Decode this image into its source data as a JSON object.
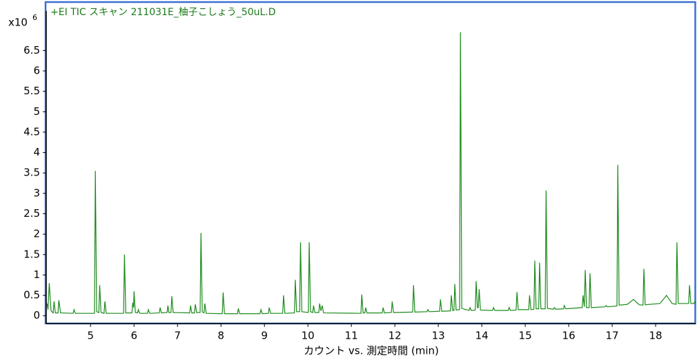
{
  "chart_data": {
    "type": "line",
    "title": "+EI TIC スキャン 211031E_柚子こしょう_50uL.D",
    "y_multiplier": {
      "base": "x10",
      "exponent": "6"
    },
    "xlabel": "カウント vs. 測定時間 (min)",
    "frame_color": "#3a6fd0",
    "xlim": [
      3.98,
      18.92
    ],
    "ylim": [
      -0.19,
      7.67
    ],
    "xticks": [
      5,
      6,
      7,
      8,
      9,
      10,
      11,
      12,
      13,
      14,
      15,
      16,
      17,
      18
    ],
    "yticks": [
      0,
      0.5,
      1,
      1.5,
      2,
      2.5,
      3,
      3.5,
      4,
      4.5,
      5,
      5.5,
      6,
      6.5
    ],
    "x": [
      4.0,
      4.02,
      4.05,
      4.09,
      4.14,
      4.16,
      4.19,
      4.25,
      4.27,
      4.31,
      4.6,
      4.62,
      4.65,
      5.09,
      5.11,
      5.14,
      5.19,
      5.21,
      5.24,
      5.31,
      5.33,
      5.36,
      5.76,
      5.78,
      5.81,
      5.95,
      5.97,
      5.99,
      6.0,
      6.03,
      6.08,
      6.1,
      6.13,
      6.31,
      6.33,
      6.36,
      6.58,
      6.6,
      6.63,
      6.76,
      6.78,
      6.8,
      6.85,
      6.87,
      6.9,
      7.28,
      7.3,
      7.33,
      7.39,
      7.41,
      7.44,
      7.52,
      7.54,
      7.57,
      7.61,
      7.63,
      7.66,
      8.03,
      8.05,
      8.08,
      8.38,
      8.4,
      8.43,
      8.9,
      8.92,
      8.95,
      9.09,
      9.11,
      9.14,
      9.42,
      9.44,
      9.47,
      9.69,
      9.71,
      9.74,
      9.81,
      9.83,
      9.86,
      10.01,
      10.03,
      10.06,
      10.11,
      10.13,
      10.16,
      10.25,
      10.27,
      10.3,
      10.33,
      10.36,
      11.22,
      11.24,
      11.27,
      11.31,
      11.33,
      11.36,
      11.71,
      11.73,
      11.76,
      11.92,
      11.94,
      11.97,
      12.41,
      12.43,
      12.46,
      12.74,
      12.76,
      12.79,
      13.03,
      13.05,
      13.08,
      13.28,
      13.3,
      13.33,
      13.36,
      13.38,
      13.41,
      13.49,
      13.51,
      13.54,
      13.71,
      13.73,
      13.76,
      13.85,
      13.87,
      13.9,
      13.92,
      13.94,
      13.97,
      14.25,
      14.27,
      14.3,
      14.61,
      14.63,
      14.66,
      14.79,
      14.81,
      14.84,
      15.08,
      15.1,
      15.13,
      15.2,
      15.22,
      15.25,
      15.31,
      15.33,
      15.36,
      15.46,
      15.48,
      15.51,
      15.65,
      15.67,
      15.7,
      15.88,
      15.9,
      15.93,
      16.31,
      16.33,
      16.36,
      16.38,
      16.41,
      16.47,
      16.49,
      16.52,
      16.84,
      16.86,
      16.89,
      17.11,
      17.13,
      17.16,
      17.35,
      17.49,
      17.62,
      17.71,
      17.73,
      17.76,
      18.1,
      18.25,
      18.38,
      18.47,
      18.49,
      18.52,
      18.76,
      18.78,
      18.81,
      18.88,
      18.9,
      18.92
    ],
    "series": [
      {
        "color": "#1a8a1a",
        "values": [
          0.3,
          0.15,
          0.8,
          0.12,
          0.07,
          0.35,
          0.07,
          0.07,
          0.38,
          0.07,
          0.06,
          0.15,
          0.06,
          0.06,
          3.55,
          0.1,
          0.08,
          0.75,
          0.08,
          0.06,
          0.35,
          0.06,
          0.06,
          1.5,
          0.07,
          0.07,
          0.32,
          0.2,
          0.6,
          0.08,
          0.07,
          0.15,
          0.06,
          0.06,
          0.15,
          0.06,
          0.07,
          0.2,
          0.07,
          0.08,
          0.25,
          0.08,
          0.08,
          0.48,
          0.08,
          0.07,
          0.25,
          0.07,
          0.07,
          0.28,
          0.08,
          0.08,
          2.03,
          0.1,
          0.07,
          0.3,
          0.06,
          0.05,
          0.57,
          0.05,
          0.05,
          0.18,
          0.05,
          0.05,
          0.15,
          0.05,
          0.06,
          0.2,
          0.06,
          0.06,
          0.5,
          0.06,
          0.07,
          0.88,
          0.1,
          0.1,
          1.8,
          0.1,
          0.08,
          1.8,
          0.1,
          0.08,
          0.25,
          0.08,
          0.08,
          0.3,
          0.12,
          0.25,
          0.07,
          0.06,
          0.52,
          0.07,
          0.07,
          0.2,
          0.07,
          0.07,
          0.2,
          0.07,
          0.08,
          0.35,
          0.08,
          0.09,
          0.75,
          0.09,
          0.1,
          0.15,
          0.1,
          0.11,
          0.4,
          0.11,
          0.12,
          0.5,
          0.13,
          0.13,
          0.78,
          0.14,
          0.15,
          6.95,
          0.18,
          0.13,
          0.2,
          0.13,
          0.14,
          0.85,
          0.2,
          0.2,
          0.65,
          0.14,
          0.13,
          0.2,
          0.13,
          0.13,
          0.2,
          0.13,
          0.14,
          0.58,
          0.15,
          0.15,
          0.5,
          0.15,
          0.16,
          1.35,
          0.17,
          0.17,
          1.3,
          0.17,
          0.17,
          3.07,
          0.18,
          0.16,
          0.2,
          0.16,
          0.17,
          0.25,
          0.17,
          0.2,
          0.5,
          0.22,
          1.12,
          0.2,
          0.2,
          1.04,
          0.2,
          0.22,
          0.25,
          0.22,
          0.24,
          3.7,
          0.26,
          0.28,
          0.4,
          0.27,
          0.26,
          1.15,
          0.27,
          0.3,
          0.5,
          0.3,
          0.28,
          1.8,
          0.3,
          0.3,
          0.75,
          0.3,
          0.3,
          0.35,
          0.3
        ]
      }
    ]
  }
}
